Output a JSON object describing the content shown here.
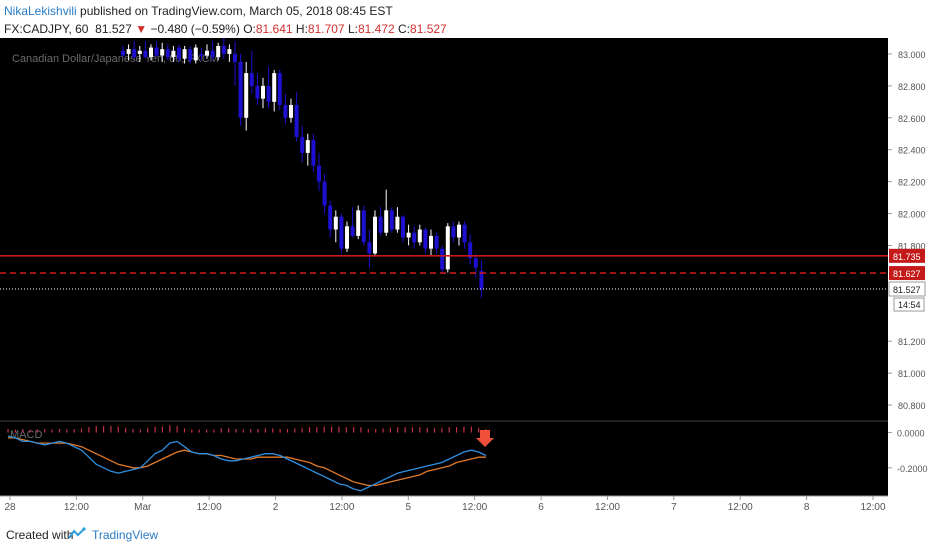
{
  "header": {
    "author": "NikaLekishvili",
    "published_text": "published on TradingView.com, March 05, 2018 08:45 EST",
    "symbol": "FX:CADJPY, 60",
    "last": "81.527",
    "change_arrow": "▼",
    "change": "−0.480 (−0.59%)",
    "o_label": "O:",
    "o_value": "81.641",
    "h_label": "H:",
    "h_value": "81.707",
    "l_label": "L:",
    "l_value": "81.472",
    "c_label": "C:",
    "c_value": "81.527"
  },
  "footer": {
    "created_with": "Created with",
    "brand": "TradingView"
  },
  "colors": {
    "background": "#000000",
    "up_candle": "#ffffff",
    "down_candle": "#1e10d0",
    "resistance_line": "#c41a1a",
    "price_line": "#ffffff",
    "macd_line": "#2f8fe0",
    "signal_line": "#e07a2a",
    "histogram": "#c4324a",
    "arrow": "#f0503a"
  },
  "chart_data": [
    {
      "type": "candlestick",
      "title": "Canadian Dollar/Japanese Yen, 60, FXCM",
      "ylim": [
        80.7,
        83.1
      ],
      "y_ticks": [
        "83.000",
        "82.800",
        "82.600",
        "82.400",
        "82.200",
        "82.000",
        "81.800",
        "81.200",
        "81.000",
        "80.800"
      ],
      "x_ticks": [
        "28",
        "12:00",
        "Mar",
        "12:00",
        "2",
        "12:00",
        "5",
        "12:00",
        "6",
        "12:00",
        "7",
        "12:00",
        "8",
        "12:00"
      ],
      "grid": false,
      "candles": [
        {
          "o": 83.02,
          "h": 83.05,
          "l": 82.98,
          "c": 82.99
        },
        {
          "o": 83.0,
          "h": 83.06,
          "l": 82.96,
          "c": 83.03
        },
        {
          "o": 83.03,
          "h": 83.08,
          "l": 82.97,
          "c": 82.98
        },
        {
          "o": 83.0,
          "h": 83.05,
          "l": 82.95,
          "c": 83.02
        },
        {
          "o": 83.02,
          "h": 83.08,
          "l": 82.97,
          "c": 82.98
        },
        {
          "o": 82.98,
          "h": 83.06,
          "l": 82.96,
          "c": 83.04
        },
        {
          "o": 83.04,
          "h": 83.08,
          "l": 82.98,
          "c": 82.99
        },
        {
          "o": 82.99,
          "h": 83.07,
          "l": 82.95,
          "c": 83.03
        },
        {
          "o": 83.03,
          "h": 83.06,
          "l": 82.96,
          "c": 82.98
        },
        {
          "o": 82.98,
          "h": 83.05,
          "l": 82.95,
          "c": 83.02
        },
        {
          "o": 83.04,
          "h": 83.06,
          "l": 82.95,
          "c": 82.97
        },
        {
          "o": 82.97,
          "h": 83.05,
          "l": 82.94,
          "c": 83.03
        },
        {
          "o": 83.03,
          "h": 83.05,
          "l": 82.94,
          "c": 82.96
        },
        {
          "o": 82.96,
          "h": 83.06,
          "l": 82.94,
          "c": 83.04
        },
        {
          "o": 83.0,
          "h": 83.04,
          "l": 82.96,
          "c": 82.99
        },
        {
          "o": 82.99,
          "h": 83.06,
          "l": 82.97,
          "c": 83.02
        },
        {
          "o": 83.02,
          "h": 83.08,
          "l": 82.96,
          "c": 82.98
        },
        {
          "o": 82.98,
          "h": 83.07,
          "l": 82.96,
          "c": 83.05
        },
        {
          "o": 83.05,
          "h": 83.1,
          "l": 82.97,
          "c": 83.0
        },
        {
          "o": 83.0,
          "h": 83.06,
          "l": 82.95,
          "c": 83.03
        },
        {
          "o": 83.0,
          "h": 83.08,
          "l": 82.8,
          "c": 82.95
        },
        {
          "o": 82.95,
          "h": 83.0,
          "l": 82.55,
          "c": 82.6
        },
        {
          "o": 82.6,
          "h": 82.95,
          "l": 82.52,
          "c": 82.88
        },
        {
          "o": 82.88,
          "h": 83.02,
          "l": 82.75,
          "c": 82.8
        },
        {
          "o": 82.8,
          "h": 82.88,
          "l": 82.68,
          "c": 82.72
        },
        {
          "o": 82.72,
          "h": 82.85,
          "l": 82.66,
          "c": 82.8
        },
        {
          "o": 82.8,
          "h": 82.92,
          "l": 82.66,
          "c": 82.7
        },
        {
          "o": 82.7,
          "h": 82.9,
          "l": 82.64,
          "c": 82.88
        },
        {
          "o": 82.88,
          "h": 82.9,
          "l": 82.65,
          "c": 82.68
        },
        {
          "o": 82.68,
          "h": 82.75,
          "l": 82.56,
          "c": 82.6
        },
        {
          "o": 82.6,
          "h": 82.72,
          "l": 82.57,
          "c": 82.68
        },
        {
          "o": 82.68,
          "h": 82.76,
          "l": 82.45,
          "c": 82.48
        },
        {
          "o": 82.48,
          "h": 82.55,
          "l": 82.32,
          "c": 82.38
        },
        {
          "o": 82.38,
          "h": 82.5,
          "l": 82.3,
          "c": 82.46
        },
        {
          "o": 82.46,
          "h": 82.5,
          "l": 82.26,
          "c": 82.3
        },
        {
          "o": 82.3,
          "h": 82.38,
          "l": 82.14,
          "c": 82.2
        },
        {
          "o": 82.2,
          "h": 82.25,
          "l": 82.0,
          "c": 82.05
        },
        {
          "o": 82.05,
          "h": 82.08,
          "l": 81.85,
          "c": 81.9
        },
        {
          "o": 81.9,
          "h": 82.02,
          "l": 81.82,
          "c": 81.98
        },
        {
          "o": 81.98,
          "h": 82.0,
          "l": 81.75,
          "c": 81.78
        },
        {
          "o": 81.78,
          "h": 81.95,
          "l": 81.76,
          "c": 81.92
        },
        {
          "o": 81.92,
          "h": 82.04,
          "l": 81.85,
          "c": 81.86
        },
        {
          "o": 81.86,
          "h": 82.05,
          "l": 81.84,
          "c": 82.02
        },
        {
          "o": 82.02,
          "h": 82.05,
          "l": 81.8,
          "c": 81.82
        },
        {
          "o": 81.82,
          "h": 81.9,
          "l": 81.66,
          "c": 81.75
        },
        {
          "o": 81.75,
          "h": 82.02,
          "l": 81.73,
          "c": 81.98
        },
        {
          "o": 81.98,
          "h": 82.04,
          "l": 81.86,
          "c": 81.88
        },
        {
          "o": 81.88,
          "h": 82.15,
          "l": 81.86,
          "c": 82.02
        },
        {
          "o": 82.02,
          "h": 82.04,
          "l": 81.88,
          "c": 81.9
        },
        {
          "o": 81.9,
          "h": 82.04,
          "l": 81.88,
          "c": 81.98
        },
        {
          "o": 81.98,
          "h": 81.99,
          "l": 81.82,
          "c": 81.85
        },
        {
          "o": 81.85,
          "h": 81.93,
          "l": 81.8,
          "c": 81.88
        },
        {
          "o": 81.88,
          "h": 81.92,
          "l": 81.78,
          "c": 81.82
        },
        {
          "o": 81.82,
          "h": 81.93,
          "l": 81.8,
          "c": 81.9
        },
        {
          "o": 81.9,
          "h": 81.91,
          "l": 81.75,
          "c": 81.78
        },
        {
          "o": 81.78,
          "h": 81.9,
          "l": 81.74,
          "c": 81.86
        },
        {
          "o": 81.86,
          "h": 81.88,
          "l": 81.75,
          "c": 81.78
        },
        {
          "o": 81.78,
          "h": 81.8,
          "l": 81.62,
          "c": 81.65
        },
        {
          "o": 81.65,
          "h": 81.94,
          "l": 81.63,
          "c": 81.92
        },
        {
          "o": 81.92,
          "h": 81.95,
          "l": 81.82,
          "c": 81.85
        },
        {
          "o": 81.85,
          "h": 81.95,
          "l": 81.8,
          "c": 81.93
        },
        {
          "o": 81.93,
          "h": 81.95,
          "l": 81.78,
          "c": 81.82
        },
        {
          "o": 81.82,
          "h": 81.87,
          "l": 81.68,
          "c": 81.72
        },
        {
          "o": 81.72,
          "h": 81.75,
          "l": 81.6,
          "c": 81.66
        },
        {
          "o": 81.641,
          "h": 81.707,
          "l": 81.472,
          "c": 81.527
        }
      ],
      "levels": [
        {
          "label": "81.735",
          "value": 81.735,
          "style": "solid"
        },
        {
          "label": "81.627",
          "value": 81.627,
          "style": "dashed"
        },
        {
          "label": "81.527",
          "value": 81.527,
          "style": "dotted"
        }
      ],
      "countdown": "14:54"
    },
    {
      "type": "line",
      "title": "MACD",
      "ylim": [
        -0.36,
        0.06
      ],
      "y_ticks": [
        "0.0000",
        "-0.2000"
      ],
      "y_tick_values": [
        0.0,
        -0.2
      ],
      "series": [
        {
          "name": "",
          "role": "macd",
          "values": [
            -0.02,
            -0.03,
            -0.05,
            -0.05,
            -0.06,
            -0.07,
            -0.06,
            -0.05,
            -0.06,
            -0.08,
            -0.1,
            -0.14,
            -0.18,
            -0.2,
            -0.22,
            -0.23,
            -0.22,
            -0.21,
            -0.2,
            -0.16,
            -0.12,
            -0.1,
            -0.06,
            -0.05,
            -0.08,
            -0.11,
            -0.12,
            -0.12,
            -0.13,
            -0.15,
            -0.16,
            -0.16,
            -0.15,
            -0.14,
            -0.13,
            -0.12,
            -0.12,
            -0.13,
            -0.15,
            -0.17,
            -0.19,
            -0.21,
            -0.23,
            -0.25,
            -0.27,
            -0.29,
            -0.3,
            -0.32,
            -0.33,
            -0.31,
            -0.29,
            -0.27,
            -0.25,
            -0.23,
            -0.22,
            -0.21,
            -0.2,
            -0.19,
            -0.18,
            -0.17,
            -0.15,
            -0.13,
            -0.11,
            -0.1,
            -0.11,
            -0.13
          ]
        },
        {
          "name": "",
          "role": "signal",
          "values": [
            -0.03,
            -0.03,
            -0.04,
            -0.05,
            -0.06,
            -0.06,
            -0.06,
            -0.06,
            -0.06,
            -0.07,
            -0.08,
            -0.1,
            -0.12,
            -0.14,
            -0.16,
            -0.18,
            -0.19,
            -0.2,
            -0.2,
            -0.19,
            -0.17,
            -0.15,
            -0.13,
            -0.11,
            -0.1,
            -0.11,
            -0.12,
            -0.12,
            -0.13,
            -0.13,
            -0.14,
            -0.15,
            -0.15,
            -0.15,
            -0.14,
            -0.14,
            -0.14,
            -0.14,
            -0.14,
            -0.15,
            -0.16,
            -0.17,
            -0.19,
            -0.2,
            -0.22,
            -0.24,
            -0.26,
            -0.28,
            -0.29,
            -0.3,
            -0.3,
            -0.29,
            -0.28,
            -0.27,
            -0.26,
            -0.25,
            -0.24,
            -0.22,
            -0.21,
            -0.2,
            -0.19,
            -0.17,
            -0.16,
            -0.15,
            -0.14,
            -0.14
          ]
        }
      ]
    }
  ]
}
